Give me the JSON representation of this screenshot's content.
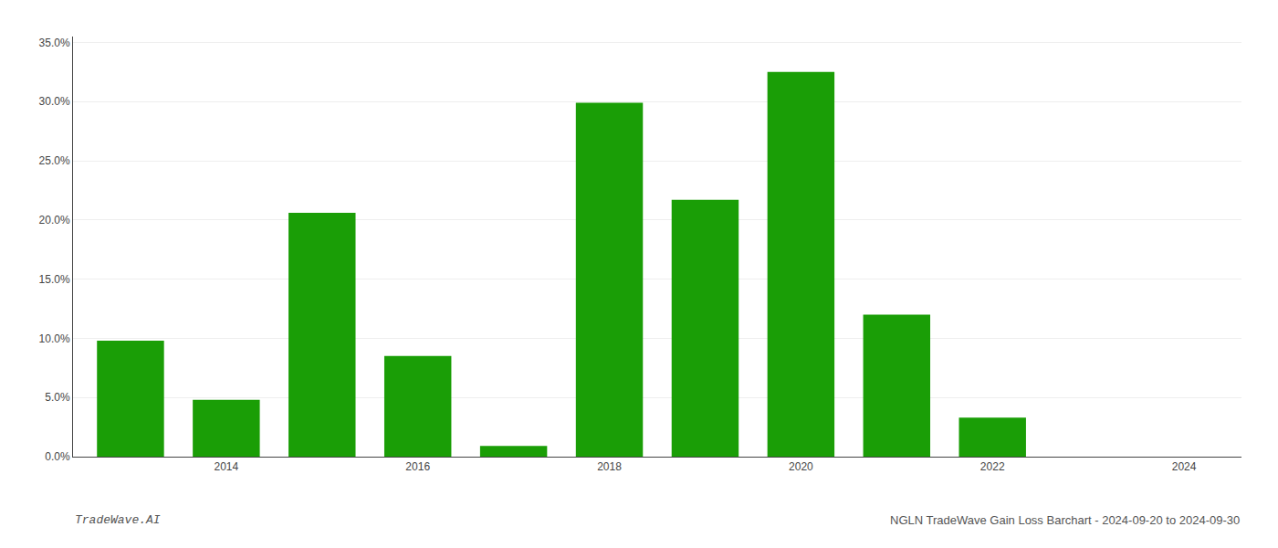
{
  "chart_data": {
    "type": "bar",
    "x": [
      2013,
      2014,
      2015,
      2016,
      2017,
      2018,
      2019,
      2020,
      2021,
      2022,
      2023
    ],
    "values": [
      0.098,
      0.048,
      0.206,
      0.085,
      0.009,
      0.299,
      0.217,
      0.325,
      0.12,
      0.033,
      0.0
    ],
    "color": "#1a9e06",
    "xlim": [
      2012.4,
      2024.6
    ],
    "xticks": [
      2014,
      2016,
      2018,
      2020,
      2022,
      2024
    ],
    "ylim": [
      0,
      0.355
    ],
    "yticks": [
      {
        "value": 0.0,
        "label": "0.0%"
      },
      {
        "value": 0.05,
        "label": "5.0%"
      },
      {
        "value": 0.1,
        "label": "10.0%"
      },
      {
        "value": 0.15,
        "label": "15.0%"
      },
      {
        "value": 0.2,
        "label": "20.0%"
      },
      {
        "value": 0.25,
        "label": "25.0%"
      },
      {
        "value": 0.3,
        "label": "30.0%"
      },
      {
        "value": 0.35,
        "label": "35.0%"
      }
    ],
    "grid": true,
    "annotations": [
      "TradeWave.AI",
      "NGLN TradeWave Gain Loss Barchart - 2024-09-20 to 2024-09-30"
    ]
  }
}
